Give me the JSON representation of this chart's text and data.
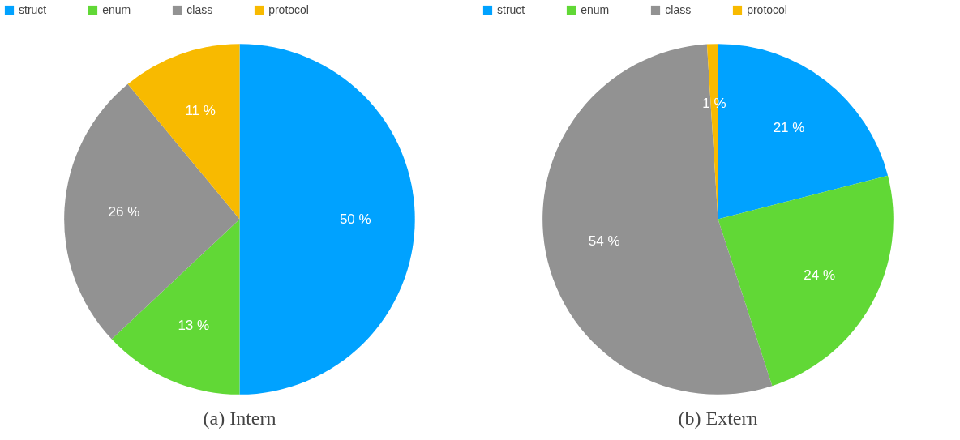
{
  "chart_data": [
    {
      "type": "pie",
      "title": "(a) Intern",
      "categories": [
        "struct",
        "enum",
        "class",
        "protocol"
      ],
      "values": [
        50,
        13,
        26,
        11
      ],
      "colors": [
        "#00a2ff",
        "#61d836",
        "#929292",
        "#f8ba00"
      ],
      "value_labels": [
        "50 %",
        "13 %",
        "26 %",
        "11 %"
      ],
      "legend": "top"
    },
    {
      "type": "pie",
      "title": "(b) Extern",
      "categories": [
        "struct",
        "enum",
        "class",
        "protocol"
      ],
      "values": [
        21,
        24,
        54,
        1
      ],
      "colors": [
        "#00a2ff",
        "#61d836",
        "#929292",
        "#f8ba00"
      ],
      "value_labels": [
        "21 %",
        "24 %",
        "54 %",
        "1 %"
      ],
      "legend": "top"
    }
  ]
}
